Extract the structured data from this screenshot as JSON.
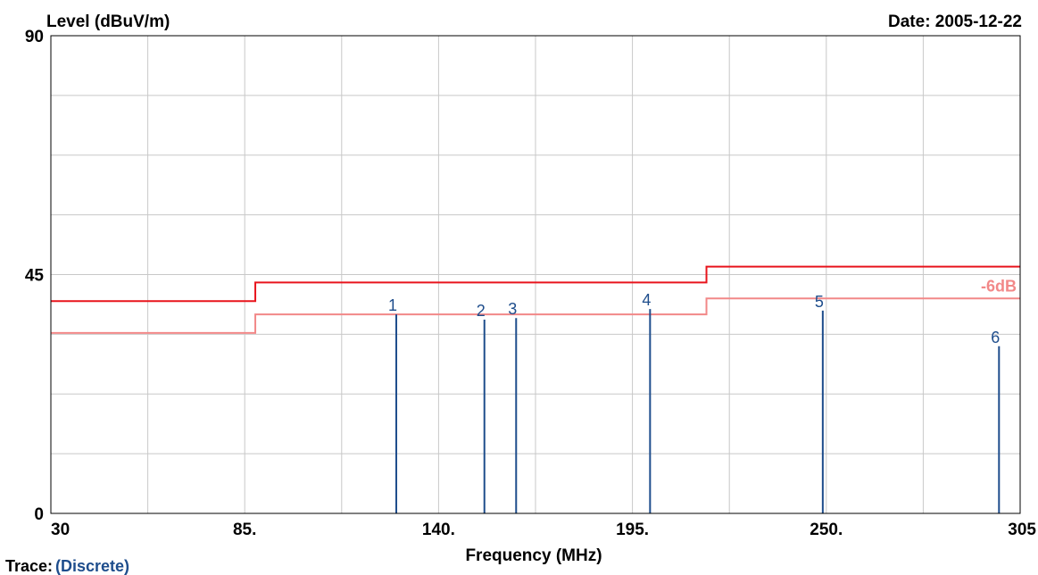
{
  "chart_data": {
    "type": "line",
    "ylabel": "Level (dBuV/m)",
    "xlabel": "Frequency (MHz)",
    "date_text": "Date: 2005-12-22",
    "xlim": [
      30,
      305
    ],
    "ylim": [
      0,
      90
    ],
    "x_ticks": [
      {
        "value": 30,
        "label": "30"
      },
      {
        "value": 85,
        "label": "85."
      },
      {
        "value": 140,
        "label": "140."
      },
      {
        "value": 195,
        "label": "195."
      },
      {
        "value": 250,
        "label": "250."
      },
      {
        "value": 305,
        "label": "305"
      }
    ],
    "y_ticks": [
      {
        "value": 0,
        "label": "0"
      },
      {
        "value": 45,
        "label": "45"
      },
      {
        "value": 90,
        "label": "90"
      }
    ],
    "x_grid": [
      30,
      57.5,
      85,
      112.5,
      140,
      167.5,
      195,
      222.5,
      250,
      277.5,
      305
    ],
    "y_grid": [
      0,
      11.25,
      22.5,
      33.75,
      45,
      56.25,
      67.5,
      78.75,
      90
    ],
    "grid": true,
    "limit_lines": [
      {
        "label": "",
        "color": "#e8141c",
        "points": [
          [
            30,
            40
          ],
          [
            88,
            40
          ],
          [
            88,
            43.5
          ],
          [
            216,
            43.5
          ],
          [
            216,
            46.5
          ],
          [
            305,
            46.5
          ]
        ]
      },
      {
        "label": "-6dB",
        "color": "#f28888",
        "points": [
          [
            30,
            34
          ],
          [
            88,
            34
          ],
          [
            88,
            37.5
          ],
          [
            216,
            37.5
          ],
          [
            216,
            40.5
          ],
          [
            305,
            40.5
          ]
        ]
      }
    ],
    "markers": [
      {
        "label": "1",
        "x": 128,
        "y": 37.5
      },
      {
        "label": "2",
        "x": 153,
        "y": 36.5
      },
      {
        "label": "3",
        "x": 162,
        "y": 36.8
      },
      {
        "label": "4",
        "x": 200,
        "y": 38.5
      },
      {
        "label": "5",
        "x": 249,
        "y": 38.2
      },
      {
        "label": "6",
        "x": 299,
        "y": 31.5
      }
    ],
    "marker_color": "#1e4d8c",
    "trace_label": "Trace:",
    "trace_value": "(Discrete)"
  }
}
